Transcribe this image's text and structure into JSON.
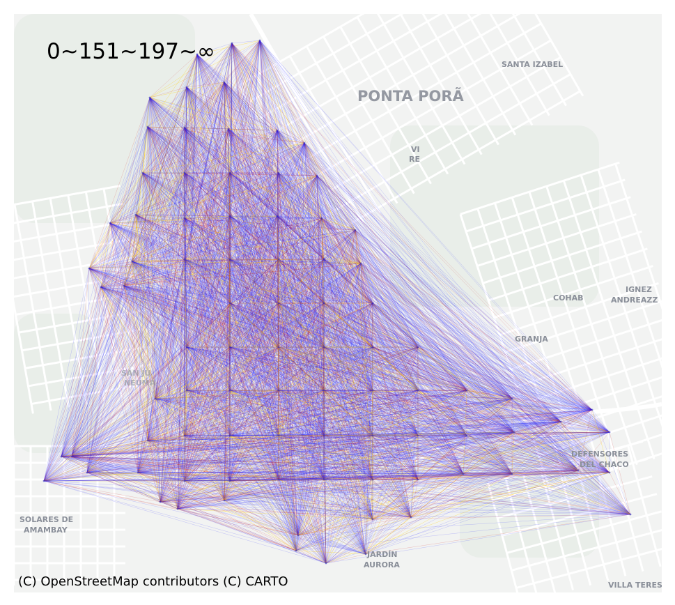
{
  "legend": {
    "label": "0~151~197~∞"
  },
  "attribution": "(C) OpenStreetMap contributors (C) CARTO",
  "place_labels": {
    "ponta_pora": "PONTA PORÃ",
    "santa_izabel": "SANTA IZABEL",
    "vi_re_line1": "VI",
    "vi_re_line2": "RE",
    "cohab": "COHAB",
    "ignez_line1": "IGNEZ",
    "ignez_line2": "ANDREAZZ",
    "granja": "GRANJA",
    "defensores_line1": "DEFENSORES",
    "defensores_line2": "DEL CHACO",
    "solares_line1": "SOLARES DE",
    "solares_line2": "AMAMBAY",
    "jardin_line1": "JARDÍN",
    "jardin_line2": "AURORA",
    "villa_teres": "VILLA TERES",
    "san_line1": "SAN JU",
    "san_line2": "NEUMA"
  },
  "edge_classes": [
    {
      "range": "0~151",
      "color": "#1f1fff"
    },
    {
      "range": "151~197",
      "color": "#d01010"
    },
    {
      "range": "197~∞",
      "color": "#ffd000"
    }
  ],
  "basemap": {
    "background": "#f2f3f2",
    "street_color": "#ffffff",
    "green_color": "#e6ebe5",
    "label_color": "#8a8f99"
  }
}
